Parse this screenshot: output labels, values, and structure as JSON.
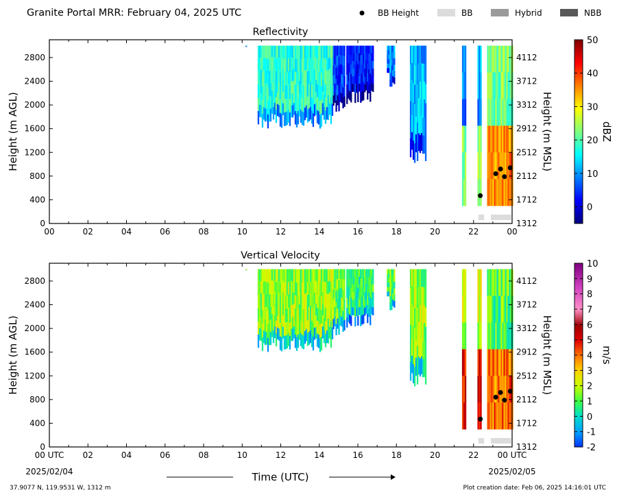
{
  "header": {
    "title": "Granite Portal MRR:  February 04, 2025 UTC"
  },
  "legend": [
    {
      "label": "BB Height",
      "kind": "dot",
      "color": "#000000"
    },
    {
      "label": "BB",
      "kind": "patch",
      "color": "#dcdcdc"
    },
    {
      "label": "Hybrid",
      "kind": "patch",
      "color": "#9a9a9a"
    },
    {
      "label": "NBB",
      "kind": "patch",
      "color": "#585858"
    }
  ],
  "x_ticks_top": [
    "00",
    "02",
    "04",
    "06",
    "08",
    "10",
    "12",
    "14",
    "16",
    "18",
    "20",
    "22",
    "00"
  ],
  "x_ticks_bottom": [
    "00 UTC",
    "02",
    "04",
    "06",
    "08",
    "10",
    "12",
    "14",
    "16",
    "18",
    "20",
    "22",
    "00 UTC"
  ],
  "x_start_date": "2025/02/04",
  "x_end_date": "2025/02/05",
  "xlabel": "Time (UTC)",
  "footer": {
    "location": "37.9077 N, 119.9531 W, 1312 m",
    "created": "Plot creation date: Feb 06, 2025 14:16:01 UTC"
  },
  "chart_data": [
    {
      "type": "heatmap",
      "title": "Reflectivity",
      "xlabel": "",
      "ylabel_left": "Height (m AGL)",
      "ylabel_right": "Height (m MSL)",
      "xlim_hours": [
        0,
        24
      ],
      "ylim_m_agl": [
        0,
        3100
      ],
      "y_ticks_left": [
        0,
        400,
        800,
        1200,
        1600,
        2000,
        2400,
        2800
      ],
      "y_ticks_right": [
        "1312",
        "1712",
        "2112",
        "2512",
        "2912",
        "3312",
        "3712",
        "4112"
      ],
      "colorbar": {
        "label": "dBZ",
        "min": -5,
        "max": 50,
        "ticks": [
          "50",
          "40",
          "30",
          "20",
          "10",
          "0"
        ],
        "scheme": "jet"
      },
      "echo_regions": [
        {
          "t_start": 10.1,
          "t_end": 10.2,
          "base_m": 2900,
          "top_m": 3000,
          "value": 10
        },
        {
          "t_start": 10.8,
          "t_end": 14.7,
          "base_m": 1600,
          "top_m": 3000,
          "value": 18
        },
        {
          "t_start": 14.7,
          "t_end": 15.3,
          "base_m": 1800,
          "top_m": 3000,
          "value": 5
        },
        {
          "t_start": 15.4,
          "t_end": 16.8,
          "base_m": 2000,
          "top_m": 3000,
          "value": 3
        },
        {
          "t_start": 17.5,
          "t_end": 17.9,
          "base_m": 2300,
          "top_m": 3000,
          "value": 10
        },
        {
          "t_start": 18.7,
          "t_end": 19.5,
          "base_m": 1000,
          "top_m": 3000,
          "value": 12
        },
        {
          "t_start": 21.4,
          "t_end": 21.6,
          "base_m": 300,
          "top_m": 3000,
          "value": 8
        },
        {
          "t_start": 22.2,
          "t_end": 22.4,
          "base_m": 300,
          "top_m": 3000,
          "value": 10
        },
        {
          "t_start": 22.7,
          "t_end": 24.0,
          "base_m": 300,
          "top_m": 3000,
          "value": 22
        }
      ],
      "bb_height": [
        {
          "t": 22.35,
          "h": 470
        },
        {
          "t": 23.15,
          "h": 840
        },
        {
          "t": 23.4,
          "h": 920
        },
        {
          "t": 23.6,
          "h": 790
        },
        {
          "t": 23.9,
          "h": 940
        }
      ],
      "bb_class": [
        {
          "t_start": 22.25,
          "t_end": 22.55,
          "class": "BB"
        },
        {
          "t_start": 22.9,
          "t_end": 23.95,
          "class": "BB"
        }
      ]
    },
    {
      "type": "heatmap",
      "title": "Vertical Velocity",
      "xlabel": "Time (UTC)",
      "ylabel_left": "Height (m AGL)",
      "ylabel_right": "Height (m MSL)",
      "xlim_hours": [
        0,
        24
      ],
      "ylim_m_agl": [
        0,
        3100
      ],
      "y_ticks_left": [
        0,
        400,
        800,
        1200,
        1600,
        2000,
        2400,
        2800
      ],
      "y_ticks_right": [
        "1312",
        "1712",
        "2112",
        "2512",
        "2912",
        "3312",
        "3712",
        "4112"
      ],
      "colorbar": {
        "label": "m/s",
        "min": -2,
        "max": 10,
        "ticks": [
          "10",
          "9",
          "8",
          "7",
          "6",
          "5",
          "4",
          "3",
          "2",
          "1",
          "0",
          "-1",
          "-2"
        ],
        "scheme": "velocity"
      },
      "echo_regions": [
        {
          "t_start": 10.1,
          "t_end": 10.2,
          "base_m": 2900,
          "top_m": 3000,
          "value": 2.0
        },
        {
          "t_start": 10.8,
          "t_end": 14.7,
          "base_m": 1600,
          "top_m": 3000,
          "value": 1.6
        },
        {
          "t_start": 14.7,
          "t_end": 15.3,
          "base_m": 1800,
          "top_m": 3000,
          "value": 1.2
        },
        {
          "t_start": 15.4,
          "t_end": 16.8,
          "base_m": 2000,
          "top_m": 3000,
          "value": 0.6
        },
        {
          "t_start": 17.5,
          "t_end": 17.9,
          "base_m": 2300,
          "top_m": 3000,
          "value": 1.2
        },
        {
          "t_start": 18.7,
          "t_end": 19.5,
          "base_m": 1000,
          "top_m": 3000,
          "value": 1.6
        },
        {
          "t_start": 21.4,
          "t_end": 21.6,
          "base_m": 300,
          "top_m": 3000,
          "value": 1.8
        },
        {
          "t_start": 22.2,
          "t_end": 22.4,
          "base_m": 300,
          "top_m": 3000,
          "value": 2.0
        },
        {
          "t_start": 22.7,
          "t_end": 24.0,
          "base_m": 300,
          "top_m": 3000,
          "value": 1.0
        }
      ],
      "bb_height": [
        {
          "t": 22.35,
          "h": 470
        },
        {
          "t": 23.15,
          "h": 840
        },
        {
          "t": 23.4,
          "h": 920
        },
        {
          "t": 23.6,
          "h": 790
        },
        {
          "t": 23.9,
          "h": 940
        }
      ],
      "bb_class": [
        {
          "t_start": 22.25,
          "t_end": 22.55,
          "class": "BB"
        },
        {
          "t_start": 22.9,
          "t_end": 23.95,
          "class": "BB"
        }
      ]
    }
  ]
}
